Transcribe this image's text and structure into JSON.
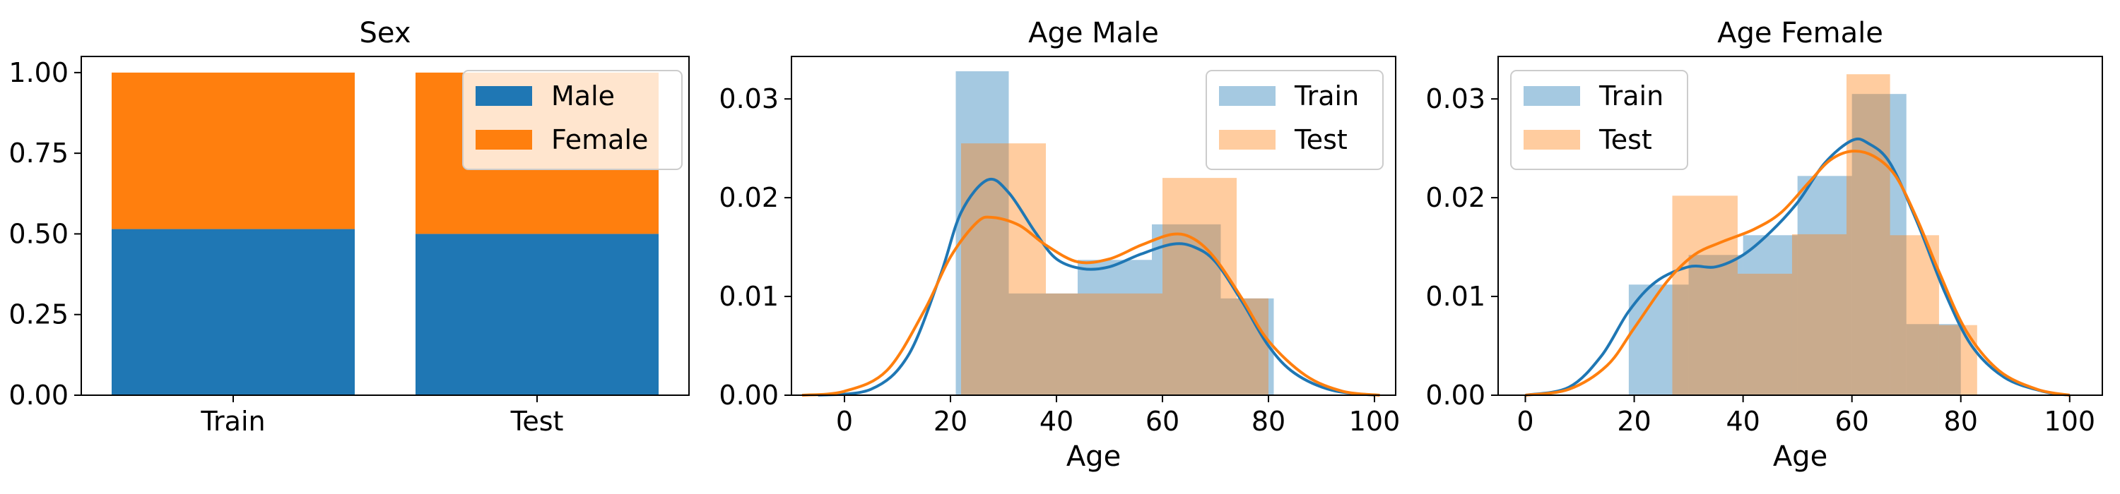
{
  "colors": {
    "blue": "#1f77b4",
    "orange": "#ff7f0e",
    "blue_hist": "#1f77b4",
    "orange_hist": "#ff7f0e"
  },
  "chart_data": [
    {
      "type": "bar",
      "title": "Sex",
      "categories": [
        "Train",
        "Test"
      ],
      "stacked": true,
      "series": [
        {
          "name": "Male",
          "values": [
            0.515,
            0.5
          ]
        },
        {
          "name": "Female",
          "values": [
            0.485,
            0.5
          ]
        }
      ],
      "ylim": [
        0,
        1.05
      ],
      "yticks": [
        "0.00",
        "0.25",
        "0.50",
        "0.75",
        "1.00"
      ],
      "xlabel": "",
      "ylabel": "",
      "legend": "top-right"
    },
    {
      "type": "histogram-kde",
      "title": "Age Male",
      "xlabel": "Age",
      "ylabel": "",
      "xlim": [
        -10,
        104
      ],
      "ylim": [
        0,
        0.0343
      ],
      "xticks": [
        "0",
        "20",
        "40",
        "60",
        "80",
        "100"
      ],
      "yticks": [
        "0.00",
        "0.01",
        "0.02",
        "0.03"
      ],
      "legend": "top-right",
      "series": [
        {
          "name": "Train",
          "bins": [
            [
              21,
              31,
              0.0328
            ],
            [
              31,
              44,
              0.0103
            ],
            [
              44,
              58,
              0.0137
            ],
            [
              58,
              71,
              0.0173
            ],
            [
              71,
              81,
              0.0098
            ]
          ],
          "kde": [
            [
              -5,
              0
            ],
            [
              5,
              0.0006
            ],
            [
              12,
              0.004
            ],
            [
              18,
              0.012
            ],
            [
              22,
              0.0185
            ],
            [
              27,
              0.0218
            ],
            [
              31,
              0.0205
            ],
            [
              36,
              0.0165
            ],
            [
              40,
              0.0138
            ],
            [
              45,
              0.0128
            ],
            [
              50,
              0.013
            ],
            [
              56,
              0.0143
            ],
            [
              62,
              0.0153
            ],
            [
              66,
              0.015
            ],
            [
              70,
              0.0135
            ],
            [
              75,
              0.0095
            ],
            [
              80,
              0.005
            ],
            [
              85,
              0.0022
            ],
            [
              92,
              0.0005
            ],
            [
              100,
              0.0
            ]
          ]
        },
        {
          "name": "Test",
          "bins": [
            [
              22,
              38,
              0.0255
            ],
            [
              38,
              60,
              0.0103
            ],
            [
              60,
              74,
              0.022
            ],
            [
              74,
              80,
              0.0098
            ]
          ],
          "kde": [
            [
              -8,
              0
            ],
            [
              0,
              0.0004
            ],
            [
              8,
              0.0025
            ],
            [
              15,
              0.0085
            ],
            [
              20,
              0.014
            ],
            [
              25,
              0.0175
            ],
            [
              28,
              0.018
            ],
            [
              33,
              0.0172
            ],
            [
              38,
              0.0152
            ],
            [
              44,
              0.0135
            ],
            [
              50,
              0.0138
            ],
            [
              56,
              0.0152
            ],
            [
              62,
              0.0163
            ],
            [
              66,
              0.0158
            ],
            [
              70,
              0.0138
            ],
            [
              75,
              0.0098
            ],
            [
              80,
              0.0055
            ],
            [
              87,
              0.002
            ],
            [
              94,
              0.0004
            ],
            [
              101,
              0.0
            ]
          ]
        }
      ]
    },
    {
      "type": "histogram-kde",
      "title": "Age Female",
      "xlabel": "Age",
      "ylabel": "",
      "xlim": [
        -5,
        106
      ],
      "ylim": [
        0,
        0.0343
      ],
      "xticks": [
        "0",
        "20",
        "40",
        "60",
        "80",
        "100"
      ],
      "yticks": [
        "0.00",
        "0.01",
        "0.02",
        "0.03"
      ],
      "legend": "top-left",
      "series": [
        {
          "name": "Train",
          "bins": [
            [
              19,
              30,
              0.0112
            ],
            [
              30,
              40,
              0.0142
            ],
            [
              40,
              50,
              0.0162
            ],
            [
              50,
              60,
              0.0222
            ],
            [
              60,
              70,
              0.0305
            ],
            [
              70,
              80,
              0.0072
            ]
          ],
          "kde": [
            [
              0,
              0
            ],
            [
              8,
              0.0008
            ],
            [
              14,
              0.004
            ],
            [
              19,
              0.0085
            ],
            [
              24,
              0.0115
            ],
            [
              30,
              0.013
            ],
            [
              35,
              0.013
            ],
            [
              40,
              0.0142
            ],
            [
              45,
              0.0165
            ],
            [
              50,
              0.0195
            ],
            [
              55,
              0.0235
            ],
            [
              60,
              0.0258
            ],
            [
              63,
              0.0255
            ],
            [
              67,
              0.0235
            ],
            [
              72,
              0.0175
            ],
            [
              77,
              0.0105
            ],
            [
              82,
              0.005
            ],
            [
              88,
              0.0018
            ],
            [
              95,
              0.0004
            ],
            [
              100,
              0.0
            ]
          ]
        },
        {
          "name": "Test",
          "bins": [
            [
              27,
              39,
              0.0202
            ],
            [
              39,
              49,
              0.0123
            ],
            [
              49,
              59,
              0.0163
            ],
            [
              59,
              67,
              0.0325
            ],
            [
              67,
              76,
              0.0162
            ],
            [
              76,
              83,
              0.0071
            ]
          ],
          "kde": [
            [
              0,
              0
            ],
            [
              8,
              0.0006
            ],
            [
              15,
              0.003
            ],
            [
              20,
              0.0068
            ],
            [
              26,
              0.0115
            ],
            [
              31,
              0.0142
            ],
            [
              36,
              0.0155
            ],
            [
              42,
              0.0168
            ],
            [
              47,
              0.0185
            ],
            [
              52,
              0.0215
            ],
            [
              56,
              0.0238
            ],
            [
              60,
              0.0247
            ],
            [
              64,
              0.0242
            ],
            [
              68,
              0.0222
            ],
            [
              72,
              0.0178
            ],
            [
              76,
              0.0125
            ],
            [
              81,
              0.0065
            ],
            [
              87,
              0.0025
            ],
            [
              94,
              0.0006
            ],
            [
              100,
              0.0
            ]
          ]
        }
      ]
    }
  ]
}
